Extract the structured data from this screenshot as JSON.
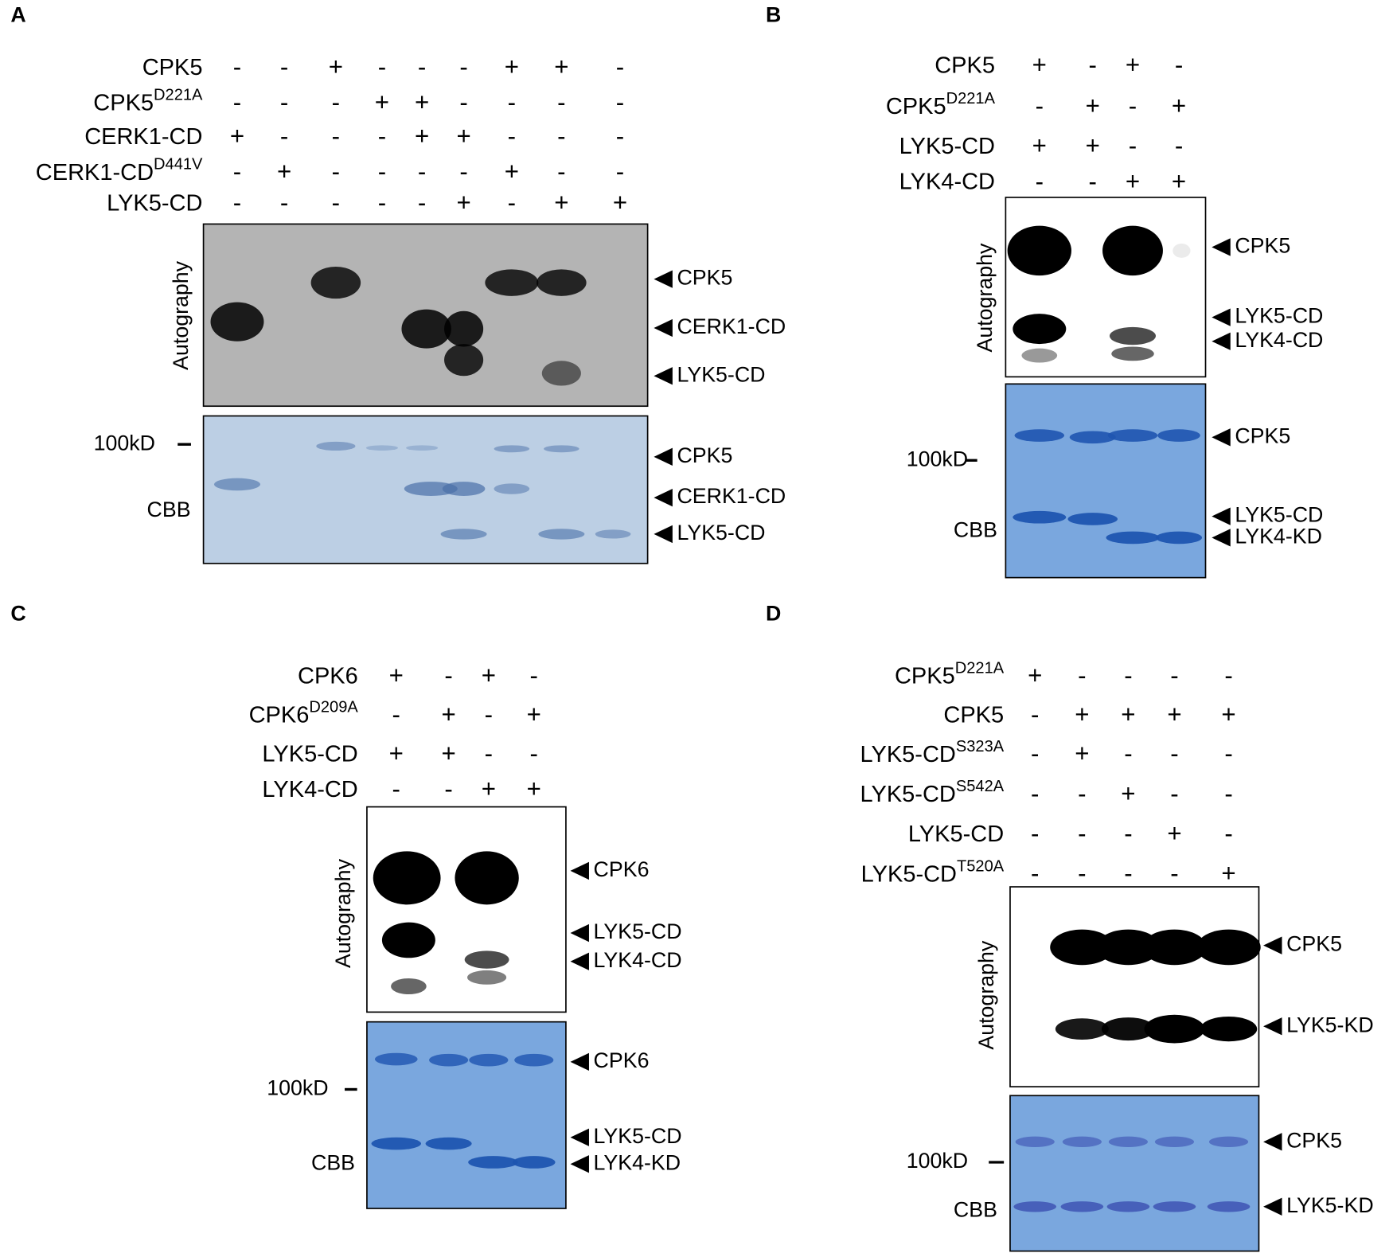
{
  "panels": [
    {
      "label": "A",
      "rows": [
        {
          "label": "CPK5",
          "signs": [
            "-",
            "-",
            "+",
            "-",
            "-",
            "-",
            "+",
            "+",
            "-"
          ]
        },
        {
          "label": {
            "base": "CPK5",
            "sup": "D221A"
          },
          "signs": [
            "-",
            "-",
            "-",
            "+",
            "+",
            "-",
            "-",
            "-",
            "-"
          ]
        },
        {
          "label": "CERK1-CD",
          "signs": [
            "+",
            "-",
            "-",
            "-",
            "+",
            "+",
            "-",
            "-",
            "-"
          ]
        },
        {
          "label": {
            "base": "CERK1-CD",
            "sup": "D441V"
          },
          "signs": [
            "-",
            "+",
            "-",
            "-",
            "-",
            "-",
            "+",
            "-",
            "-"
          ]
        },
        {
          "label": "LYK5-CD",
          "signs": [
            "-",
            "-",
            "-",
            "-",
            "-",
            "+",
            "-",
            "+",
            "+"
          ]
        }
      ],
      "autography_label": "Autography",
      "autography_bands": [
        "CPK5",
        "CERK1-CD",
        "LYK5-CD"
      ],
      "cbb_label": "CBB",
      "marker": "100kD",
      "cbb_bands": [
        "CPK5",
        "CERK1-CD",
        "LYK5-CD"
      ]
    },
    {
      "label": "B",
      "rows": [
        {
          "label": "CPK5",
          "signs": [
            "+",
            "-",
            "+",
            "-"
          ]
        },
        {
          "label": {
            "base": "CPK5",
            "sup": "D221A"
          },
          "signs": [
            "-",
            "+",
            "-",
            "+"
          ]
        },
        {
          "label": "LYK5-CD",
          "signs": [
            "+",
            "+",
            "-",
            "-"
          ]
        },
        {
          "label": "LYK4-CD",
          "signs": [
            "-",
            "-",
            "+",
            "+"
          ]
        }
      ],
      "autography_label": "Autography",
      "autography_bands": [
        "CPK5",
        "LYK5-CD",
        "LYK4-CD"
      ],
      "cbb_label": "CBB",
      "marker": "100kD",
      "cbb_bands": [
        "CPK5",
        "LYK5-CD",
        "LYK4-KD"
      ]
    },
    {
      "label": "C",
      "rows": [
        {
          "label": "CPK6",
          "signs": [
            "+",
            "-",
            "+",
            "-"
          ]
        },
        {
          "label": {
            "base": "CPK6",
            "sup": "D209A"
          },
          "signs": [
            "-",
            "+",
            "-",
            "+"
          ]
        },
        {
          "label": "LYK5-CD",
          "signs": [
            "+",
            "+",
            "-",
            "-"
          ]
        },
        {
          "label": "LYK4-CD",
          "signs": [
            "-",
            "-",
            "+",
            "+"
          ]
        }
      ],
      "autography_label": "Autography",
      "autography_bands": [
        "CPK6",
        "LYK5-CD",
        "LYK4-CD"
      ],
      "cbb_label": "CBB",
      "marker": "100kD",
      "cbb_bands": [
        "CPK6",
        "LYK5-CD",
        "LYK4-KD"
      ]
    },
    {
      "label": "D",
      "rows": [
        {
          "label": {
            "base": "CPK5",
            "sup": "D221A"
          },
          "signs": [
            "+",
            "-",
            "-",
            "-",
            "-"
          ]
        },
        {
          "label": "CPK5",
          "signs": [
            "-",
            "+",
            "+",
            "+",
            "+"
          ]
        },
        {
          "label": {
            "base": "LYK5-CD",
            "sup": "S323A"
          },
          "signs": [
            "-",
            "+",
            "-",
            "-",
            "-"
          ]
        },
        {
          "label": {
            "base": "LYK5-CD",
            "sup": "S542A"
          },
          "signs": [
            "-",
            "-",
            "+",
            "-",
            "-"
          ]
        },
        {
          "label": "LYK5-CD",
          "signs": [
            "-",
            "-",
            "-",
            "+",
            "-"
          ]
        },
        {
          "label": {
            "base": "LYK5-CD",
            "sup": "T520A"
          },
          "signs": [
            "-",
            "-",
            "-",
            "-",
            "+"
          ]
        }
      ],
      "autography_label": "Autography",
      "autography_bands": [
        "CPK5",
        "LYK5-KD"
      ],
      "cbb_label": "CBB",
      "marker": "100kD",
      "cbb_bands": [
        "CPK5",
        "LYK5-KD"
      ]
    }
  ]
}
